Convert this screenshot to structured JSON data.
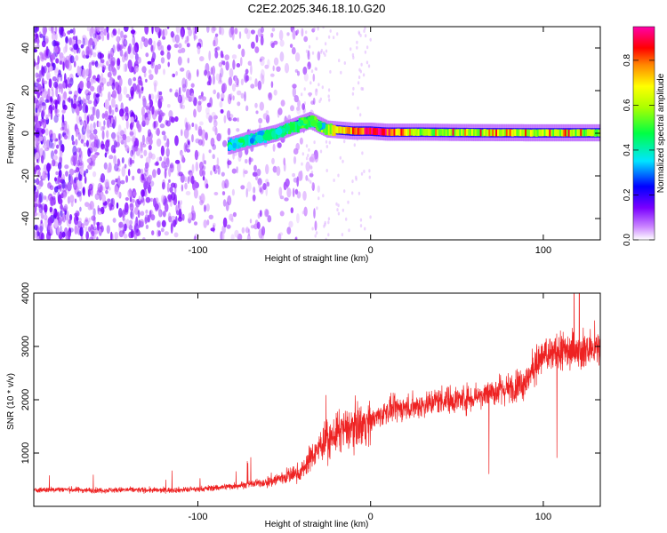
{
  "title": "C2E2.2025.346.18.10.G20",
  "colors": {
    "snr_line": "#ee2222",
    "axis": "#000000"
  },
  "chart_data": [
    {
      "type": "heatmap",
      "xlabel": "Height of straight line (km)",
      "ylabel": "Frequency (Hz)",
      "xlim": [
        -195,
        133
      ],
      "ylim": [
        -50,
        50
      ],
      "x_ticks": [
        -100,
        0,
        100
      ],
      "x_tick_labels": [
        "-100",
        "0",
        "100"
      ],
      "y_ticks": [
        -40,
        -20,
        0,
        20,
        40
      ],
      "y_tick_labels": [
        "-40",
        "-20",
        "0",
        "20",
        "40"
      ],
      "colorbar": {
        "label": "Normalized spectral amplitude",
        "range": [
          0,
          0.95
        ],
        "ticks": [
          0.0,
          0.2,
          0.4,
          0.6,
          0.8
        ],
        "tick_labels": [
          "0.0",
          "0.2",
          "0.4",
          "0.6",
          "0.8"
        ],
        "colormap": [
          "#ffffff",
          "#8a2be2",
          "#0000ff",
          "#00e5ff",
          "#00ff00",
          "#ffff00",
          "#ff8800",
          "#ff0000",
          "#ff00ff"
        ]
      },
      "noise_region_x": [
        -195,
        -30
      ],
      "signal_trace": {
        "x": [
          -82,
          -70,
          -55,
          -45,
          -35,
          -25,
          -10,
          0,
          10,
          30,
          60,
          100,
          133
        ],
        "y": [
          -6,
          -3,
          0,
          3,
          6,
          2,
          1,
          1,
          0.5,
          0.5,
          0.3,
          0.2,
          0.2
        ],
        "amplitude": [
          0.35,
          0.4,
          0.4,
          0.45,
          0.5,
          0.6,
          0.75,
          0.9,
          0.85,
          0.55,
          0.6,
          0.6,
          0.55
        ]
      }
    },
    {
      "type": "line",
      "xlabel": "Height of straight line (km)",
      "ylabel": "SNR (10 * v/v)",
      "xlim": [
        -195,
        133
      ],
      "ylim": [
        0,
        4000
      ],
      "x_ticks": [
        -100,
        0,
        100
      ],
      "x_tick_labels": [
        "-100",
        "0",
        "100"
      ],
      "y_ticks": [
        1000,
        2000,
        3000,
        4000
      ],
      "y_tick_labels": [
        "1000",
        "2000",
        "3000",
        "4000"
      ],
      "series": [
        {
          "x": [
            -195,
            -180,
            -160,
            -140,
            -120,
            -100,
            -80,
            -60,
            -50,
            -40,
            -35,
            -30,
            -25,
            -20,
            -10,
            0,
            10,
            20,
            30,
            40,
            50,
            60,
            70,
            80,
            90,
            95,
            100,
            110,
            120,
            133
          ],
          "y": [
            300,
            320,
            300,
            310,
            300,
            320,
            380,
            450,
            550,
            650,
            900,
            1100,
            1250,
            1350,
            1500,
            1600,
            1800,
            1850,
            1900,
            2000,
            2000,
            2050,
            2150,
            2200,
            2350,
            2650,
            2800,
            2900,
            2950,
            2950
          ]
        }
      ]
    }
  ]
}
